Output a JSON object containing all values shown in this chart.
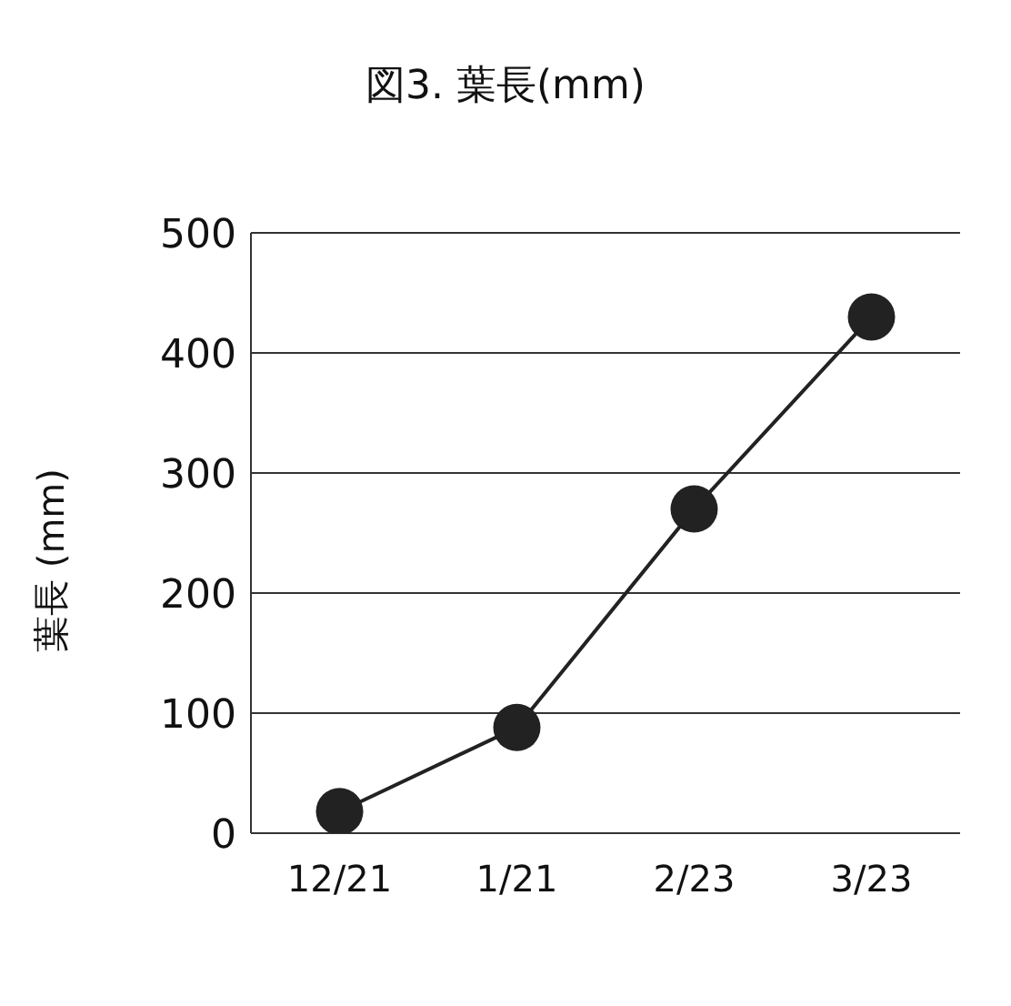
{
  "chart_data": {
    "type": "line",
    "title": "図3. 葉長(mm)",
    "ylabel": "葉長 (mm)",
    "categories": [
      "12/21",
      "1/21",
      "2/23",
      "3/23"
    ],
    "series": [
      {
        "color": "#222222",
        "values": [
          18,
          88,
          270,
          430
        ]
      }
    ],
    "ylim": [
      0,
      500
    ],
    "yticks": [
      0,
      100,
      200,
      300,
      400,
      500
    ],
    "grid": "y",
    "marker": "circle",
    "line_style": "solid"
  }
}
